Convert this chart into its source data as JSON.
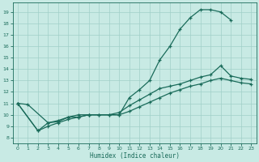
{
  "xlabel": "Humidex (Indice chaleur)",
  "xlim": [
    -0.5,
    23.5
  ],
  "ylim": [
    7.5,
    19.8
  ],
  "xticks": [
    0,
    1,
    2,
    3,
    4,
    5,
    6,
    7,
    8,
    9,
    10,
    11,
    12,
    13,
    14,
    15,
    16,
    17,
    18,
    19,
    20,
    21,
    22,
    23
  ],
  "yticks": [
    8,
    9,
    10,
    11,
    12,
    13,
    14,
    15,
    16,
    17,
    18,
    19
  ],
  "bg_color": "#c8eae4",
  "line_color": "#1a6b5a",
  "grid_color": "#a0cfc8",
  "line1_x": [
    0,
    1,
    3,
    4,
    5,
    6,
    7,
    10,
    11,
    12,
    13,
    14,
    15,
    16,
    17,
    18,
    19,
    20,
    21
  ],
  "line1_y": [
    11.0,
    10.9,
    9.3,
    9.5,
    9.8,
    10.0,
    10.0,
    10.0,
    11.5,
    12.2,
    13.0,
    14.8,
    16.0,
    17.5,
    18.5,
    19.2,
    19.2,
    19.0,
    18.3
  ],
  "line2_x": [
    0,
    2,
    3,
    4,
    5,
    6,
    7,
    8,
    9,
    10,
    11,
    12,
    13,
    14,
    15,
    16,
    17,
    18,
    19,
    20,
    21,
    22,
    23
  ],
  "line2_y": [
    11.0,
    8.6,
    9.3,
    9.4,
    9.8,
    9.8,
    10.0,
    10.0,
    10.0,
    10.2,
    10.8,
    11.3,
    11.8,
    12.3,
    12.5,
    12.7,
    13.0,
    13.3,
    13.5,
    14.3,
    13.4,
    13.2,
    13.1
  ],
  "line3_x": [
    0,
    2,
    3,
    4,
    5,
    6,
    7,
    8,
    9,
    10,
    11,
    12,
    13,
    14,
    15,
    16,
    17,
    18,
    19,
    20,
    21,
    22,
    23
  ],
  "line3_y": [
    11.0,
    8.6,
    9.0,
    9.3,
    9.6,
    9.8,
    10.0,
    10.0,
    10.0,
    10.0,
    10.3,
    10.7,
    11.1,
    11.5,
    11.9,
    12.2,
    12.5,
    12.7,
    13.0,
    13.2,
    13.0,
    12.8,
    12.7
  ]
}
